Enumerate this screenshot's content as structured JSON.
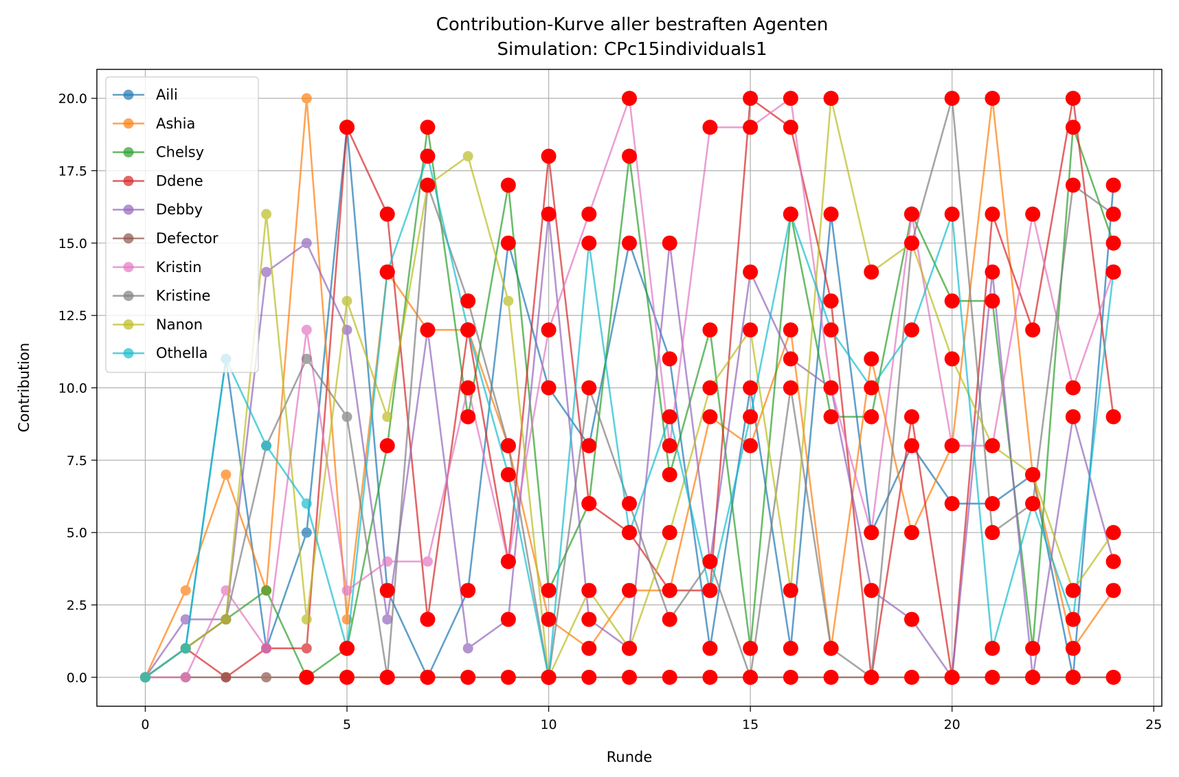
{
  "chart_data": {
    "type": "line",
    "title": "Contribution-Kurve aller bestraften Agenten",
    "subtitle": "Simulation: CPc15individuals1",
    "xlabel": "Runde",
    "ylabel": "Contribution",
    "xlim": [
      -1.2,
      25.2
    ],
    "ylim": [
      -1,
      21
    ],
    "xticks": [
      0,
      5,
      10,
      15,
      20,
      25
    ],
    "yticks": [
      0.0,
      2.5,
      5.0,
      7.5,
      10.0,
      12.5,
      15.0,
      17.5,
      20.0
    ],
    "grid": true,
    "legend_position": "top-left",
    "punished_marker_color": "#ff0000",
    "x": [
      0,
      1,
      2,
      3,
      4,
      5,
      6,
      7,
      8,
      9,
      10,
      11,
      12,
      13,
      14,
      15,
      16,
      17,
      18,
      19,
      20,
      21,
      22,
      23,
      24
    ],
    "series": [
      {
        "name": "Aili",
        "color": "#1f77b4",
        "values": [
          0,
          1,
          11,
          1,
          5,
          19,
          3,
          0,
          3,
          15,
          10,
          8,
          15,
          11,
          1,
          10,
          1,
          16,
          5,
          8,
          6,
          6,
          7,
          0,
          17
        ],
        "punished_from": 5
      },
      {
        "name": "Ashia",
        "color": "#ff7f0e",
        "values": [
          0,
          3,
          7,
          3,
          20,
          2,
          14,
          12,
          12,
          8,
          2,
          1,
          3,
          3,
          9,
          8,
          12,
          1,
          11,
          5,
          8,
          20,
          7,
          1,
          3
        ],
        "punished_from": 6
      },
      {
        "name": "Chelsy",
        "color": "#2ca02c",
        "values": [
          0,
          1,
          2,
          3,
          0,
          1,
          8,
          19,
          9,
          17,
          3,
          6,
          18,
          7,
          12,
          1,
          16,
          9,
          9,
          16,
          13,
          13,
          1,
          19,
          15
        ],
        "punished_from": 5
      },
      {
        "name": "Ddene",
        "color": "#d62728",
        "values": [
          0,
          1,
          0,
          1,
          1,
          19,
          16,
          2,
          12,
          4,
          18,
          6,
          5,
          3,
          3,
          20,
          19,
          13,
          0,
          9,
          0,
          16,
          12,
          20,
          9
        ],
        "punished_from": 5
      },
      {
        "name": "Debby",
        "color": "#9467bd",
        "values": [
          0,
          2,
          2,
          14,
          15,
          12,
          2,
          12,
          1,
          2,
          16,
          2,
          1,
          15,
          4,
          14,
          11,
          10,
          3,
          2,
          0,
          14,
          0,
          9,
          4
        ],
        "punished_from": 9
      },
      {
        "name": "Defector",
        "color": "#8c564b",
        "values": [
          0,
          0,
          0,
          0,
          0,
          0,
          0,
          0,
          0,
          0,
          0,
          0,
          0,
          0,
          0,
          0,
          0,
          0,
          0,
          0,
          0,
          0,
          0,
          0,
          0
        ],
        "punished_from": 4
      },
      {
        "name": "Kristin",
        "color": "#e377c2",
        "values": [
          0,
          0,
          3,
          1,
          12,
          3,
          4,
          4,
          10,
          4,
          12,
          16,
          20,
          8,
          19,
          19,
          20,
          10,
          5,
          16,
          8,
          8,
          16,
          10,
          14
        ],
        "punished_from": 8
      },
      {
        "name": "Kristine",
        "color": "#7f7f7f",
        "values": [
          0,
          1,
          2,
          8,
          11,
          9,
          0,
          17,
          13,
          8,
          0,
          10,
          6,
          2,
          4,
          0,
          10,
          1,
          0,
          15,
          20,
          5,
          6,
          17,
          16
        ],
        "punished_from": 6
      },
      {
        "name": "Nanon",
        "color": "#bcbd22",
        "values": [
          0,
          1,
          2,
          16,
          2,
          13,
          9,
          17,
          18,
          13,
          0,
          3,
          1,
          5,
          10,
          12,
          3,
          20,
          14,
          15,
          11,
          8,
          7,
          3,
          5
        ],
        "punished_from": 10
      },
      {
        "name": "Othella",
        "color": "#17becf",
        "values": [
          0,
          1,
          11,
          8,
          6,
          1,
          14,
          18,
          12,
          7,
          0,
          15,
          5,
          9,
          3,
          9,
          16,
          12,
          10,
          12,
          16,
          1,
          6,
          2,
          14
        ],
        "punished_from": 5
      }
    ]
  }
}
